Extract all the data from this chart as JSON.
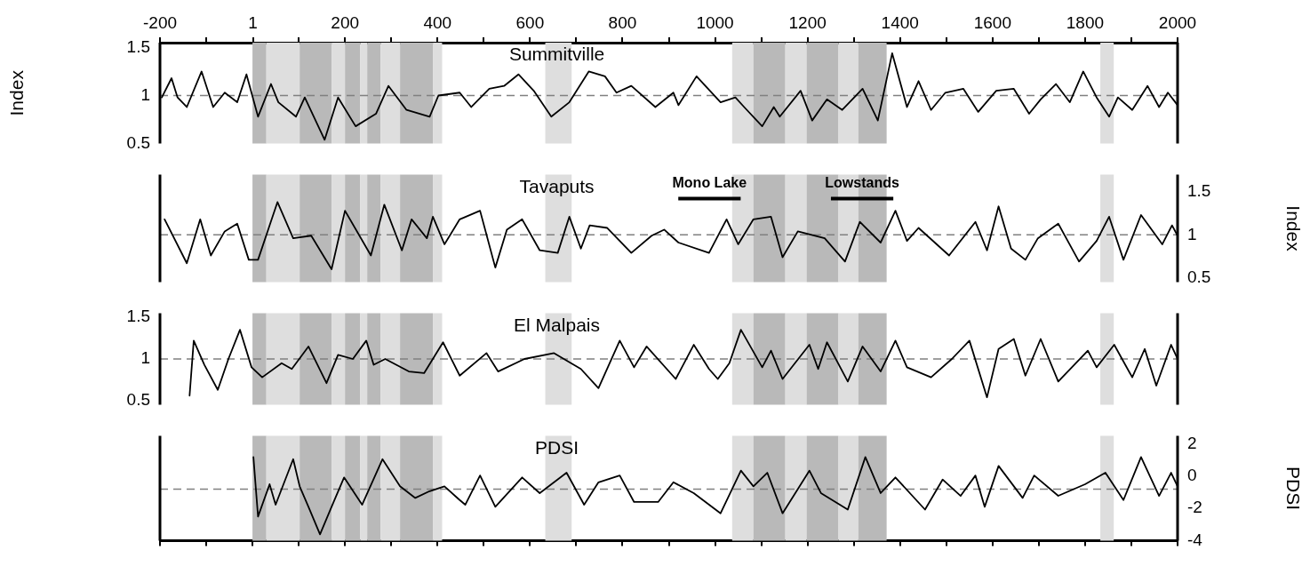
{
  "chart_data": [
    {
      "type": "line",
      "title": "Summitville",
      "ylabel": "Index",
      "xlim": [
        -200,
        2000
      ],
      "xticks": [
        -200,
        {
          "value": -100,
          "label": null
        },
        1,
        {
          "value": 100,
          "label": null
        },
        200,
        {
          "value": 300,
          "label": null
        },
        400,
        {
          "value": 500,
          "label": null
        },
        600,
        {
          "value": 700,
          "label": null
        },
        800,
        {
          "value": 900,
          "label": null
        },
        1000,
        {
          "value": 1100,
          "label": null
        },
        1200,
        {
          "value": 1300,
          "label": null
        },
        1400,
        {
          "value": 1500,
          "label": null
        },
        1600,
        {
          "value": 1700,
          "label": null
        },
        1800,
        {
          "value": 1900,
          "label": null
        },
        2000
      ],
      "ylim": [
        0.5,
        1.55
      ],
      "yticks": [
        0.5,
        1,
        1.5
      ],
      "ref_lines": [
        {
          "axis": "y",
          "value": 1,
          "color": "#808080",
          "line_style": "dashed"
        }
      ],
      "bands": [
        {
          "axis": "x",
          "from": 0,
          "to": 30,
          "color": "#b9b9b9"
        },
        {
          "axis": "x",
          "from": 30,
          "to": 102,
          "color": "#dedede"
        },
        {
          "axis": "x",
          "from": 102,
          "to": 171,
          "color": "#b9b9b9"
        },
        {
          "axis": "x",
          "from": 171,
          "to": 200,
          "color": "#dedede"
        },
        {
          "axis": "x",
          "from": 200,
          "to": 233,
          "color": "#b9b9b9"
        },
        {
          "axis": "x",
          "from": 233,
          "to": 248,
          "color": "#dedede"
        },
        {
          "axis": "x",
          "from": 248,
          "to": 277,
          "color": "#b9b9b9"
        },
        {
          "axis": "x",
          "from": 277,
          "to": 319,
          "color": "#dedede"
        },
        {
          "axis": "x",
          "from": 319,
          "to": 390,
          "color": "#b9b9b9"
        },
        {
          "axis": "x",
          "from": 390,
          "to": 410,
          "color": "#dedede"
        },
        {
          "axis": "x",
          "from": 633,
          "to": 690,
          "color": "#dedede"
        },
        {
          "axis": "x",
          "from": 1037,
          "to": 1083,
          "color": "#dedede"
        },
        {
          "axis": "x",
          "from": 1083,
          "to": 1152,
          "color": "#b9b9b9"
        },
        {
          "axis": "x",
          "from": 1152,
          "to": 1198,
          "color": "#dedede"
        },
        {
          "axis": "x",
          "from": 1198,
          "to": 1267,
          "color": "#b9b9b9"
        },
        {
          "axis": "x",
          "from": 1267,
          "to": 1310,
          "color": "#dedede"
        },
        {
          "axis": "x",
          "from": 1310,
          "to": 1371,
          "color": "#b9b9b9"
        },
        {
          "axis": "x",
          "from": 1833,
          "to": 1862,
          "color": "#dedede"
        }
      ],
      "series": [
        {
          "color": "#000000",
          "x": [
            -196,
            -175,
            -162,
            -142,
            -110,
            -85,
            -60,
            -33,
            -13,
            12,
            40,
            56,
            94,
            113,
            156,
            185,
            223,
            267,
            294,
            333,
            383,
            402,
            448,
            473,
            512,
            544,
            575,
            608,
            646,
            685,
            727,
            762,
            787,
            819,
            871,
            910,
            921,
            960,
            1012,
            1044,
            1063,
            1102,
            1127,
            1140,
            1185,
            1210,
            1242,
            1275,
            1319,
            1352,
            1383,
            1415,
            1440,
            1467,
            1498,
            1537,
            1569,
            1608,
            1646,
            1679,
            1704,
            1737,
            1767,
            1796,
            1825,
            1852,
            1871,
            1902,
            1935,
            1960,
            1979,
            2000
          ],
          "values": [
            0.98,
            1.18,
            0.98,
            0.88,
            1.25,
            0.88,
            1.03,
            0.93,
            1.22,
            0.78,
            1.12,
            0.93,
            0.78,
            0.98,
            0.54,
            0.98,
            0.68,
            0.81,
            1.1,
            0.85,
            0.78,
            1.0,
            1.03,
            0.88,
            1.07,
            1.1,
            1.22,
            1.05,
            0.78,
            0.93,
            1.25,
            1.2,
            1.03,
            1.1,
            0.88,
            1.03,
            0.9,
            1.2,
            0.93,
            0.98,
            0.88,
            0.68,
            0.88,
            0.78,
            1.05,
            0.74,
            0.96,
            0.85,
            1.07,
            0.74,
            1.44,
            0.88,
            1.15,
            0.85,
            1.03,
            1.07,
            0.83,
            1.05,
            1.07,
            0.81,
            0.96,
            1.12,
            0.93,
            1.25,
            0.98,
            0.78,
            0.98,
            0.85,
            1.1,
            0.88,
            1.03,
            0.9
          ]
        }
      ]
    },
    {
      "type": "line",
      "title": "Tavaputs",
      "y2label": "Index",
      "xlim": [
        -200,
        2000
      ],
      "tick_labels": "y",
      "y2lim": [
        0.45,
        1.7
      ],
      "y2ticks": [
        0.5,
        1,
        1.5
      ],
      "annotations": [
        "Mono Lake",
        "Lowstands"
      ],
      "ref_lines": [
        {
          "axis": "y2",
          "value": 1,
          "color": "#808080",
          "line_style": "dashed"
        }
      ],
      "bands": [
        {
          "axis": "x",
          "from": 0,
          "to": 30,
          "color": "#b9b9b9"
        },
        {
          "axis": "x",
          "from": 30,
          "to": 102,
          "color": "#dedede"
        },
        {
          "axis": "x",
          "from": 102,
          "to": 171,
          "color": "#b9b9b9"
        },
        {
          "axis": "x",
          "from": 171,
          "to": 200,
          "color": "#dedede"
        },
        {
          "axis": "x",
          "from": 200,
          "to": 233,
          "color": "#b9b9b9"
        },
        {
          "axis": "x",
          "from": 233,
          "to": 248,
          "color": "#dedede"
        },
        {
          "axis": "x",
          "from": 248,
          "to": 277,
          "color": "#b9b9b9"
        },
        {
          "axis": "x",
          "from": 277,
          "to": 319,
          "color": "#dedede"
        },
        {
          "axis": "x",
          "from": 319,
          "to": 390,
          "color": "#b9b9b9"
        },
        {
          "axis": "x",
          "from": 390,
          "to": 410,
          "color": "#dedede"
        },
        {
          "axis": "x",
          "from": 633,
          "to": 690,
          "color": "#dedede"
        },
        {
          "axis": "x",
          "from": 1037,
          "to": 1083,
          "color": "#dedede"
        },
        {
          "axis": "x",
          "from": 1083,
          "to": 1152,
          "color": "#b9b9b9"
        },
        {
          "axis": "x",
          "from": 1152,
          "to": 1198,
          "color": "#dedede"
        },
        {
          "axis": "x",
          "from": 1198,
          "to": 1267,
          "color": "#b9b9b9"
        },
        {
          "axis": "x",
          "from": 1267,
          "to": 1310,
          "color": "#dedede"
        },
        {
          "axis": "x",
          "from": 1310,
          "to": 1371,
          "color": "#b9b9b9"
        },
        {
          "axis": "x",
          "from": 1833,
          "to": 1862,
          "color": "#dedede"
        }
      ],
      "series": [
        {
          "color": "#000000",
          "axis": "y2",
          "x": [
            -190,
            -142,
            -113,
            -90,
            -60,
            -33,
            -8,
            12,
            54,
            88,
            127,
            171,
            200,
            256,
            285,
            323,
            344,
            377,
            390,
            415,
            448,
            492,
            525,
            550,
            583,
            621,
            660,
            685,
            710,
            729,
            767,
            819,
            863,
            890,
            921,
            987,
            1025,
            1050,
            1083,
            1121,
            1146,
            1179,
            1237,
            1281,
            1313,
            1358,
            1390,
            1415,
            1440,
            1506,
            1563,
            1588,
            1613,
            1640,
            1671,
            1698,
            1742,
            1787,
            1825,
            1852,
            1883,
            1921,
            1967,
            1988,
            2000
          ],
          "values": [
            1.18,
            0.67,
            1.18,
            0.76,
            1.04,
            1.13,
            0.71,
            0.71,
            1.38,
            0.96,
            0.99,
            0.6,
            1.28,
            0.76,
            1.35,
            0.82,
            1.18,
            0.96,
            1.21,
            0.89,
            1.18,
            1.28,
            0.62,
            1.06,
            1.18,
            0.82,
            0.79,
            1.21,
            0.84,
            1.11,
            1.08,
            0.79,
            0.99,
            1.06,
            0.91,
            0.79,
            1.18,
            0.89,
            1.18,
            1.21,
            0.74,
            1.04,
            0.96,
            0.69,
            1.15,
            0.91,
            1.28,
            0.93,
            1.08,
            0.76,
            1.15,
            0.82,
            1.33,
            0.84,
            0.71,
            0.96,
            1.13,
            0.69,
            0.93,
            1.21,
            0.71,
            1.23,
            0.89,
            1.11,
            0.99
          ]
        }
      ]
    },
    {
      "type": "line",
      "title": "El Malpais",
      "xlim": [
        -200,
        2000
      ],
      "tick_labels": "y",
      "ylim": [
        0.45,
        1.55
      ],
      "yticks": [
        0.5,
        1,
        1.5
      ],
      "ref_lines": [
        {
          "axis": "y",
          "value": 1,
          "color": "#808080",
          "line_style": "dashed"
        }
      ],
      "bands": [
        {
          "axis": "x",
          "from": 0,
          "to": 30,
          "color": "#b9b9b9"
        },
        {
          "axis": "x",
          "from": 30,
          "to": 102,
          "color": "#dedede"
        },
        {
          "axis": "x",
          "from": 102,
          "to": 171,
          "color": "#b9b9b9"
        },
        {
          "axis": "x",
          "from": 171,
          "to": 200,
          "color": "#dedede"
        },
        {
          "axis": "x",
          "from": 200,
          "to": 233,
          "color": "#b9b9b9"
        },
        {
          "axis": "x",
          "from": 233,
          "to": 248,
          "color": "#dedede"
        },
        {
          "axis": "x",
          "from": 248,
          "to": 277,
          "color": "#b9b9b9"
        },
        {
          "axis": "x",
          "from": 277,
          "to": 319,
          "color": "#dedede"
        },
        {
          "axis": "x",
          "from": 319,
          "to": 390,
          "color": "#b9b9b9"
        },
        {
          "axis": "x",
          "from": 390,
          "to": 410,
          "color": "#dedede"
        },
        {
          "axis": "x",
          "from": 633,
          "to": 690,
          "color": "#dedede"
        },
        {
          "axis": "x",
          "from": 1037,
          "to": 1083,
          "color": "#dedede"
        },
        {
          "axis": "x",
          "from": 1083,
          "to": 1152,
          "color": "#b9b9b9"
        },
        {
          "axis": "x",
          "from": 1152,
          "to": 1198,
          "color": "#dedede"
        },
        {
          "axis": "x",
          "from": 1198,
          "to": 1267,
          "color": "#b9b9b9"
        },
        {
          "axis": "x",
          "from": 1267,
          "to": 1310,
          "color": "#dedede"
        },
        {
          "axis": "x",
          "from": 1310,
          "to": 1371,
          "color": "#b9b9b9"
        },
        {
          "axis": "x",
          "from": 1833,
          "to": 1862,
          "color": "#dedede"
        }
      ],
      "series": [
        {
          "color": "#000000",
          "x": [
            -136,
            -127,
            -104,
            -75,
            -52,
            -27,
            -2,
            21,
            63,
            85,
            121,
            160,
            185,
            217,
            246,
            262,
            287,
            338,
            371,
            412,
            448,
            506,
            531,
            588,
            652,
            710,
            748,
            794,
            825,
            852,
            915,
            954,
            987,
            1006,
            1031,
            1056,
            1102,
            1121,
            1146,
            1204,
            1223,
            1242,
            1287,
            1319,
            1358,
            1390,
            1415,
            1467,
            1512,
            1550,
            1588,
            1613,
            1646,
            1671,
            1704,
            1742,
            1806,
            1825,
            1863,
            1902,
            1929,
            1954,
            1986,
            2000
          ],
          "values": [
            0.56,
            1.22,
            0.93,
            0.63,
            1.0,
            1.35,
            0.9,
            0.78,
            0.95,
            0.88,
            1.15,
            0.71,
            1.05,
            1.0,
            1.22,
            0.93,
            1.0,
            0.85,
            0.83,
            1.2,
            0.8,
            1.07,
            0.85,
            1.0,
            1.07,
            0.88,
            0.65,
            1.22,
            0.9,
            1.15,
            0.76,
            1.17,
            0.88,
            0.76,
            0.95,
            1.35,
            0.9,
            1.1,
            0.76,
            1.17,
            0.88,
            1.2,
            0.73,
            1.15,
            0.85,
            1.22,
            0.9,
            0.78,
            1.0,
            1.22,
            0.54,
            1.12,
            1.24,
            0.8,
            1.24,
            0.73,
            1.1,
            0.9,
            1.17,
            0.78,
            1.12,
            0.68,
            1.17,
            1.0
          ]
        }
      ]
    },
    {
      "type": "line",
      "title": "PDSI",
      "y2label": "PDSI",
      "xlim": [
        -200,
        2000
      ],
      "xticks": [
        -200,
        -100,
        0,
        100,
        200,
        300,
        400,
        500,
        600,
        700,
        800,
        900,
        1000,
        1100,
        1200,
        1300,
        1400,
        1500,
        1600,
        1700,
        1800,
        1900,
        2000
      ],
      "tick_labels": "y",
      "y2lim": [
        -4,
        2.5
      ],
      "y2ticks": [
        -4,
        -2,
        0,
        2
      ],
      "ref_lines": [
        {
          "axis": "y2",
          "value": -0.8,
          "color": "#808080",
          "line_style": "dashed"
        }
      ],
      "bands": [
        {
          "axis": "x",
          "from": 0,
          "to": 30,
          "color": "#b9b9b9"
        },
        {
          "axis": "x",
          "from": 30,
          "to": 102,
          "color": "#dedede"
        },
        {
          "axis": "x",
          "from": 102,
          "to": 171,
          "color": "#b9b9b9"
        },
        {
          "axis": "x",
          "from": 171,
          "to": 200,
          "color": "#dedede"
        },
        {
          "axis": "x",
          "from": 200,
          "to": 233,
          "color": "#b9b9b9"
        },
        {
          "axis": "x",
          "from": 233,
          "to": 248,
          "color": "#dedede"
        },
        {
          "axis": "x",
          "from": 248,
          "to": 277,
          "color": "#b9b9b9"
        },
        {
          "axis": "x",
          "from": 277,
          "to": 319,
          "color": "#dedede"
        },
        {
          "axis": "x",
          "from": 319,
          "to": 390,
          "color": "#b9b9b9"
        },
        {
          "axis": "x",
          "from": 390,
          "to": 410,
          "color": "#dedede"
        },
        {
          "axis": "x",
          "from": 633,
          "to": 690,
          "color": "#dedede"
        },
        {
          "axis": "x",
          "from": 1037,
          "to": 1083,
          "color": "#dedede"
        },
        {
          "axis": "x",
          "from": 1083,
          "to": 1152,
          "color": "#b9b9b9"
        },
        {
          "axis": "x",
          "from": 1152,
          "to": 1198,
          "color": "#dedede"
        },
        {
          "axis": "x",
          "from": 1198,
          "to": 1267,
          "color": "#b9b9b9"
        },
        {
          "axis": "x",
          "from": 1267,
          "to": 1310,
          "color": "#dedede"
        },
        {
          "axis": "x",
          "from": 1310,
          "to": 1371,
          "color": "#b9b9b9"
        },
        {
          "axis": "x",
          "from": 1833,
          "to": 1862,
          "color": "#dedede"
        }
      ],
      "series": [
        {
          "color": "#000000",
          "axis": "y2",
          "x": [
            2,
            12,
            37,
            50,
            88,
            102,
            121,
            146,
            171,
            198,
            237,
            281,
            319,
            352,
            383,
            415,
            448,
            460,
            492,
            525,
            583,
            621,
            679,
            717,
            748,
            794,
            825,
            877,
            910,
            954,
            1012,
            1056,
            1083,
            1113,
            1146,
            1204,
            1229,
            1287,
            1325,
            1358,
            1390,
            1454,
            1492,
            1531,
            1563,
            1583,
            1613,
            1665,
            1690,
            1742,
            1800,
            1844,
            1883,
            1921,
            1960,
            1986,
            2000
          ],
          "values": [
            1.18,
            -2.5,
            -0.5,
            -1.77,
            1.05,
            -0.63,
            -1.9,
            -3.6,
            -1.9,
            -0.08,
            -1.77,
            1.05,
            -0.63,
            -1.35,
            -0.93,
            -0.63,
            -1.48,
            -1.77,
            0.04,
            -1.9,
            -0.08,
            -1.05,
            0.21,
            -1.77,
            -0.38,
            0.04,
            -1.6,
            -1.6,
            -0.38,
            -1.05,
            -2.3,
            0.34,
            -0.63,
            0.21,
            -2.3,
            0.34,
            -1.05,
            -2.07,
            1.18,
            -1.05,
            -0.08,
            -2.07,
            -0.21,
            -1.22,
            0.04,
            -1.9,
            0.63,
            -1.35,
            0.04,
            -1.22,
            -0.5,
            0.21,
            -1.48,
            1.18,
            -1.22,
            0.21,
            -0.63
          ]
        }
      ]
    }
  ]
}
